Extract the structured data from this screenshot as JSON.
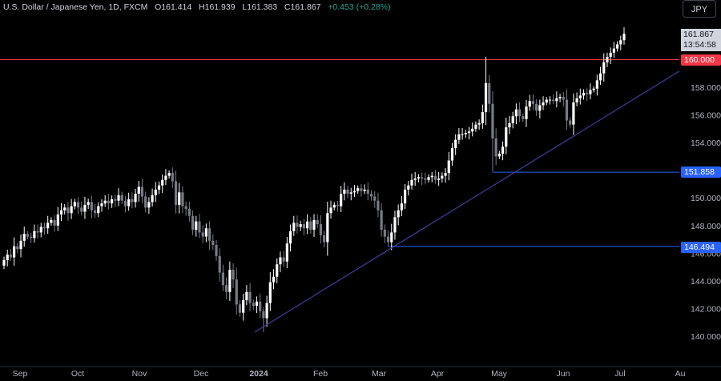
{
  "header": {
    "symbol": "U.S. Dollar / Japanese Yen, 1D, FXCM",
    "open_label": "O",
    "open": "161.414",
    "high_label": "H",
    "high": "161.939",
    "low_label": "L",
    "low": "161.383",
    "close_label": "C",
    "close": "161.867",
    "change": "+0.453 (+0.28%)"
  },
  "currency_button": "JPY",
  "price_tag": {
    "price": "161.867",
    "countdown": "13:54:58"
  },
  "levels": [
    {
      "label": "160.000",
      "value": 160.0,
      "color": "#f23645"
    },
    {
      "label": "151.858",
      "value": 151.858,
      "color": "#2962ff"
    },
    {
      "label": "146.494",
      "value": 146.494,
      "color": "#2962ff"
    }
  ],
  "chart_data": {
    "type": "candlestick",
    "y_ticks": [
      "158.000",
      "156.000",
      "154.000",
      "152.000",
      "150.000",
      "148.000",
      "146.000",
      "144.000",
      "142.000",
      "140.000"
    ],
    "ylim": [
      139.4,
      163.2
    ],
    "x_ticks": [
      "Sep",
      "Oct",
      "Nov",
      "Dec",
      "2024",
      "Feb",
      "Mar",
      "Apr",
      "May",
      "Jun",
      "Jul",
      "Au"
    ],
    "trendline": {
      "from": [
        "2023-12-28",
        140.3
      ],
      "through": [
        "2024-03-08",
        146.5
      ],
      "to": [
        "2024-07-26",
        159.2
      ]
    },
    "colors": {
      "up": "#ffffff",
      "down": "#787b86",
      "background": "#000000"
    },
    "closes": [
      145.5,
      145.9,
      145.7,
      146.5,
      146.3,
      146.9,
      147.4,
      147.2,
      147.1,
      147.6,
      147.5,
      147.9,
      147.8,
      148.2,
      148.4,
      148.0,
      148.8,
      149.1,
      149.3,
      148.9,
      149.4,
      149.7,
      149.3,
      149.0,
      149.5,
      149.7,
      149.1,
      148.9,
      149.4,
      149.6,
      149.8,
      149.6,
      149.9,
      149.8,
      150.2,
      149.8,
      149.4,
      149.9,
      149.7,
      150.3,
      150.8,
      150.1,
      149.3,
      149.7,
      150.2,
      150.6,
      150.9,
      151.3,
      151.6,
      151.8,
      151.2,
      149.5,
      150.4,
      149.4,
      149.2,
      148.7,
      147.7,
      148.3,
      147.5,
      147.2,
      147.8,
      146.9,
      146.6,
      145.8,
      144.6,
      143.7,
      143.2,
      144.8,
      144.1,
      142.3,
      141.7,
      142.6,
      143.2,
      142.4,
      142.2,
      142.5,
      141.8,
      141.3,
      142.4,
      143.9,
      144.3,
      145.2,
      145.7,
      145.4,
      146.7,
      147.6,
      148.2,
      147.9,
      148.1,
      147.8,
      148.3,
      147.7,
      148.4,
      148.1,
      147.3,
      146.8,
      148.9,
      149.3,
      149.5,
      149.4,
      150.3,
      150.6,
      150.3,
      150.4,
      150.5,
      150.7,
      150.5,
      150.6,
      150.3,
      150.1,
      149.8,
      149.1,
      147.7,
      147.2,
      146.8,
      147.5,
      148.6,
      149.1,
      149.6,
      150.6,
      150.9,
      151.3,
      151.4,
      151.5,
      151.4,
      151.3,
      151.5,
      151.6,
      151.3,
      151.4,
      151.6,
      151.8,
      152.7,
      153.6,
      154.2,
      154.6,
      154.6,
      154.7,
      154.8,
      155.0,
      155.3,
      155.4,
      156.2,
      158.3,
      156.8,
      154.3,
      153.0,
      153.2,
      153.7,
      155.1,
      155.4,
      155.9,
      156.4,
      155.9,
      155.7,
      156.6,
      157.0,
      156.8,
      156.3,
      156.7,
      156.9,
      157.1,
      157.1,
      157.0,
      157.2,
      157.3,
      157.1,
      155.6,
      155.3,
      156.9,
      157.2,
      157.4,
      157.6,
      157.5,
      157.8,
      157.9,
      158.5,
      159.0,
      159.8,
      160.2,
      160.5,
      160.8,
      161.1,
      161.4,
      161.867
    ]
  }
}
